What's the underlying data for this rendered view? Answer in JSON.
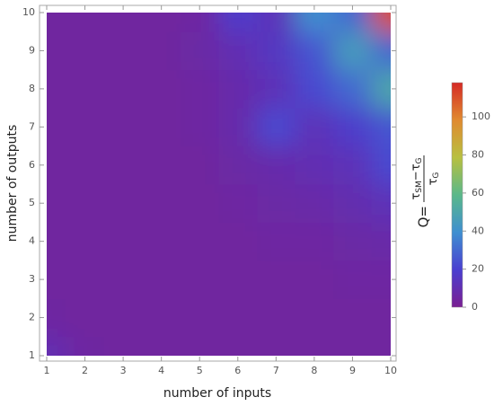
{
  "chart_data": {
    "type": "heatmap",
    "x_label": "number of inputs",
    "y_label": "number of outputs",
    "x": [
      1,
      2,
      3,
      4,
      5,
      6,
      7,
      8,
      9,
      10
    ],
    "y": [
      1,
      2,
      3,
      4,
      5,
      6,
      7,
      8,
      9,
      10
    ],
    "z": [
      [
        10,
        5,
        4,
        4,
        4,
        4,
        4,
        4,
        4,
        4
      ],
      [
        5,
        4,
        4,
        4,
        4,
        4,
        4,
        4,
        4,
        4
      ],
      [
        4,
        4,
        4,
        4,
        4,
        4,
        4,
        4,
        5,
        5
      ],
      [
        4,
        4,
        4,
        4,
        4,
        4,
        5,
        5,
        6,
        7
      ],
      [
        4,
        4,
        4,
        4,
        4,
        5,
        6,
        7,
        9,
        12
      ],
      [
        4,
        4,
        4,
        4,
        4,
        6,
        8,
        10,
        12,
        22
      ],
      [
        4,
        4,
        4,
        4,
        5,
        8,
        22,
        12,
        18,
        25
      ],
      [
        4,
        4,
        4,
        4,
        5,
        8,
        12,
        22,
        30,
        50
      ],
      [
        4,
        4,
        4,
        4,
        6,
        10,
        15,
        25,
        45,
        30
      ],
      [
        4,
        4,
        4,
        4,
        5,
        18,
        12,
        40,
        30,
        110
      ]
    ],
    "xlim": [
      1,
      10
    ],
    "ylim": [
      1,
      10
    ],
    "xticks": [
      1,
      2,
      3,
      4,
      5,
      6,
      7,
      8,
      9,
      10
    ],
    "yticks": [
      1,
      2,
      3,
      4,
      5,
      6,
      7,
      8,
      9,
      10
    ],
    "zlim": [
      0,
      118
    ],
    "zticks": [
      0,
      20,
      40,
      60,
      80,
      100
    ],
    "colormap": [
      "#7a1f92",
      "#4a3fd0",
      "#3f8fd0",
      "#5ab88a",
      "#b8c040",
      "#e08a30",
      "#d52a25"
    ],
    "colorbar_label": {
      "prefix": "Q=",
      "numerator": [
        "τ",
        "SM",
        "−τ",
        "G"
      ],
      "denominator": [
        "τ",
        "G"
      ]
    }
  }
}
